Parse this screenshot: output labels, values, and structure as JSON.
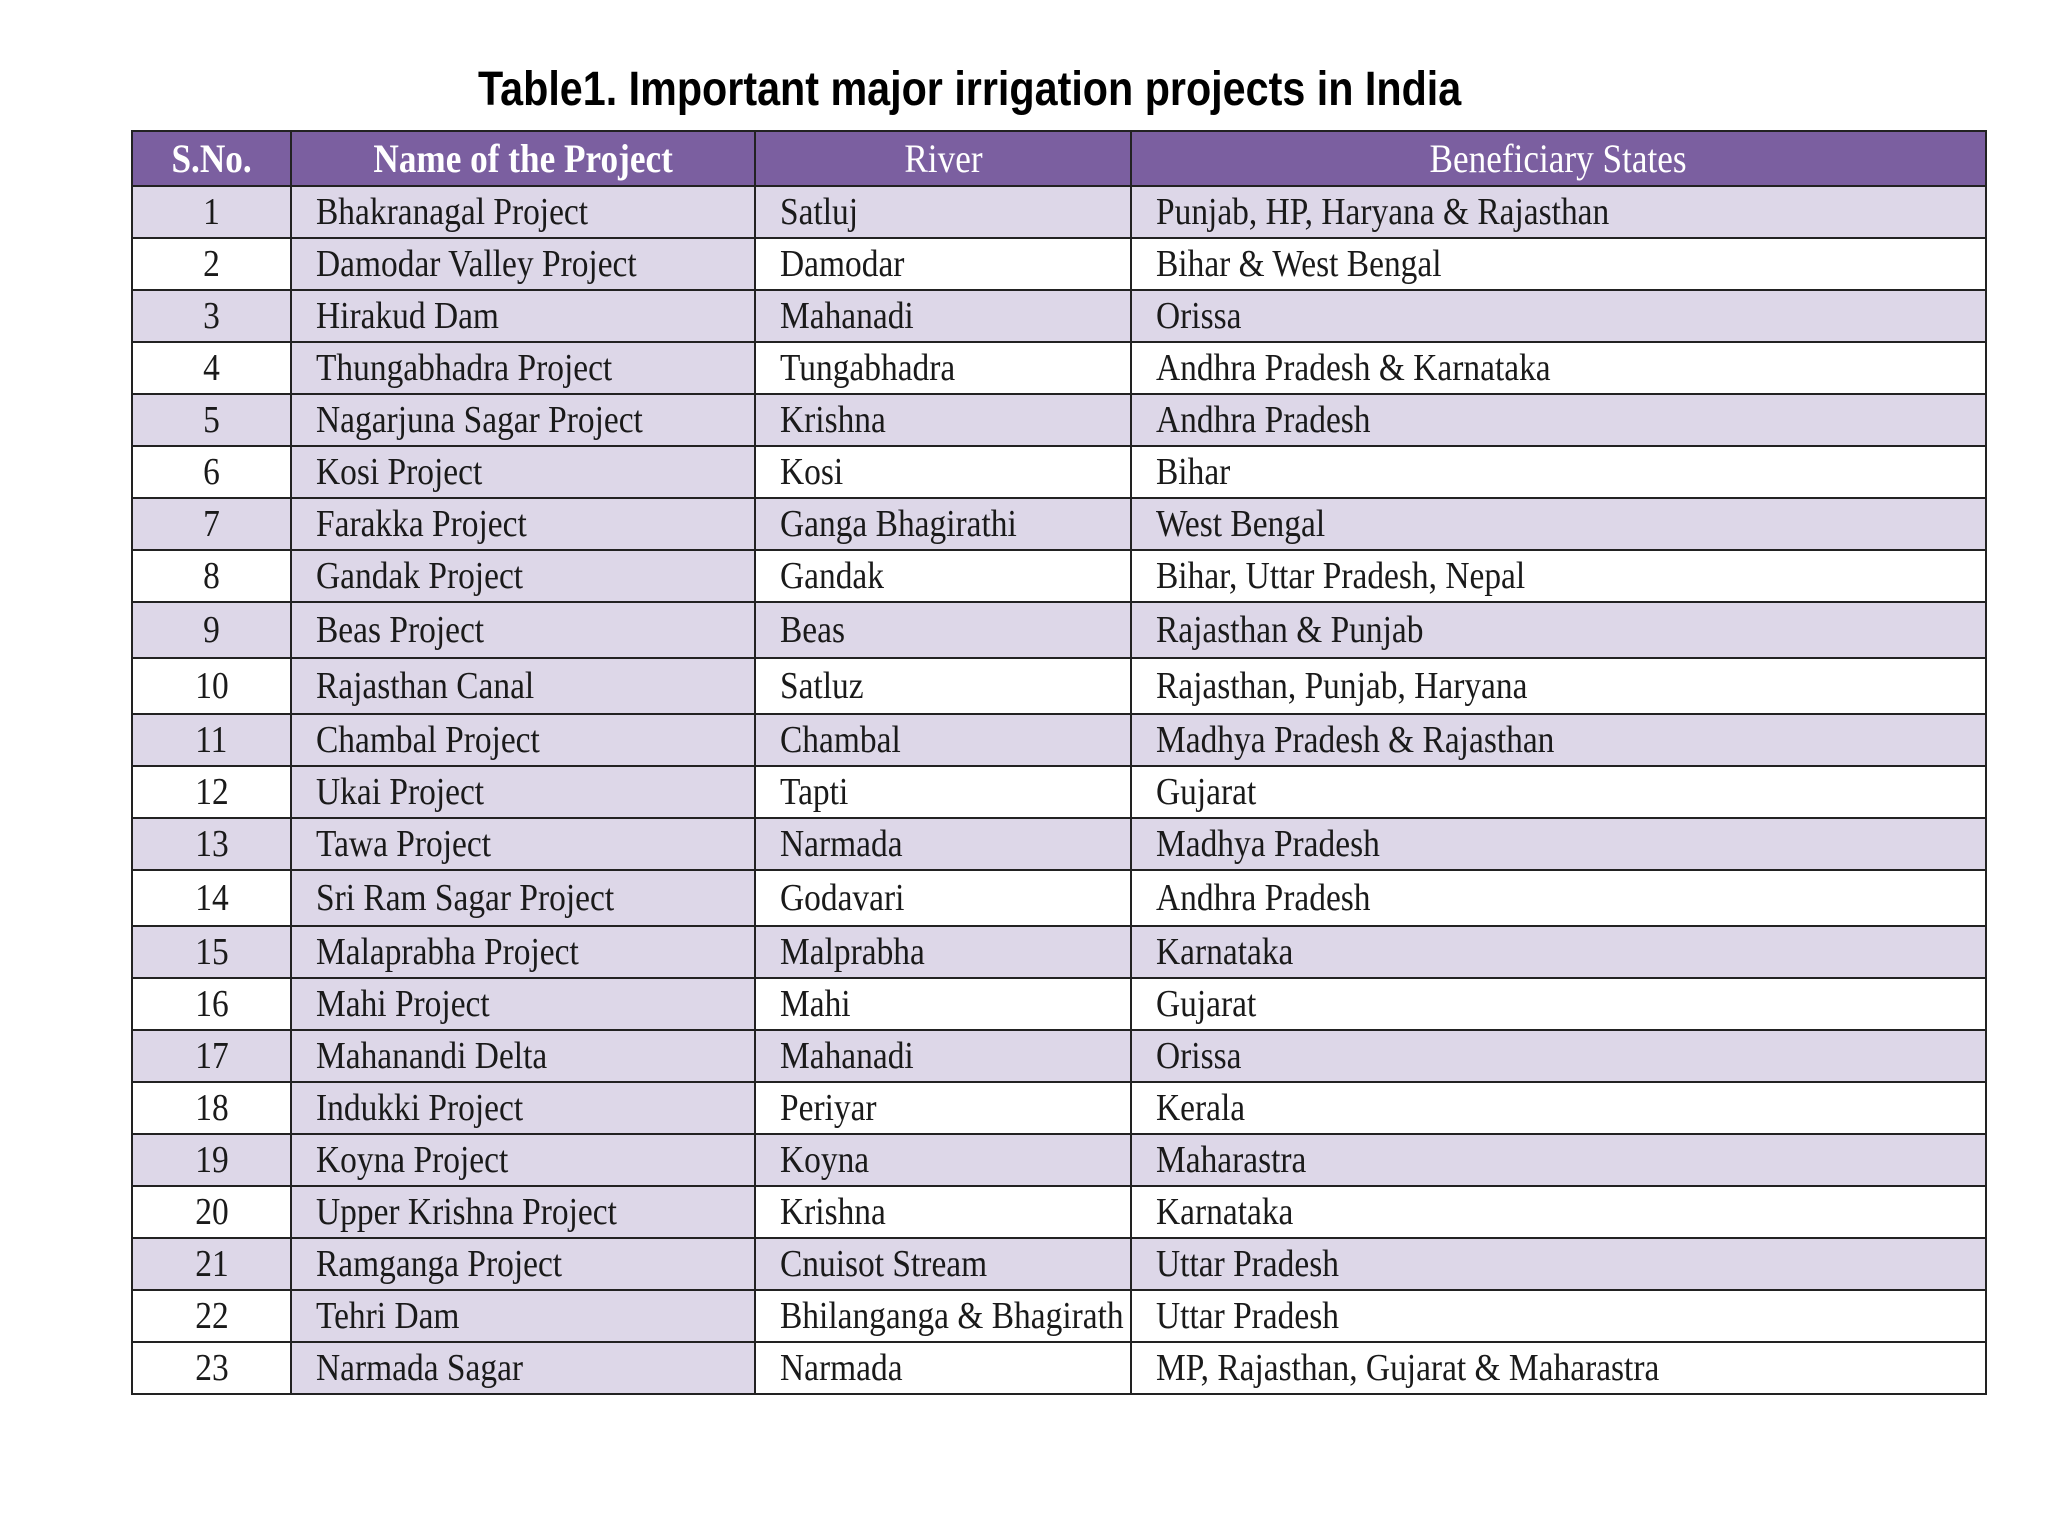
{
  "title": "Table1. Important major irrigation projects in India",
  "colors": {
    "header_bg": "#7b5fa0",
    "header_text": "#ffffff",
    "shaded_row_bg": "#ddd7e8",
    "plain_row_bg": "#ffffff",
    "border": "#222222"
  },
  "table": {
    "headers": {
      "sno": "S.No.",
      "name": "Name of the Project",
      "river": "River",
      "states": "Beneficiary States"
    },
    "rows": [
      {
        "sno": "1",
        "name": "Bhakranagal Project",
        "river": "Satluj",
        "states": "Punjab, HP, Haryana & Rajasthan"
      },
      {
        "sno": "2",
        "name": "Damodar Valley Project",
        "river": "Damodar",
        "states": "Bihar & West Bengal"
      },
      {
        "sno": "3",
        "name": "Hirakud Dam",
        "river": "Mahanadi",
        "states": "Orissa"
      },
      {
        "sno": "4",
        "name": "Thungabhadra Project",
        "river": "Tungabhadra",
        "states": "Andhra Pradesh & Karnataka"
      },
      {
        "sno": "5",
        "name": "Nagarjuna Sagar Project",
        "river": "Krishna",
        "states": "Andhra Pradesh"
      },
      {
        "sno": "6",
        "name": "Kosi  Project",
        "river": "Kosi",
        "states": "Bihar"
      },
      {
        "sno": "7",
        "name": "Farakka Project",
        "river": "Ganga Bhagirathi",
        "states": "West Bengal"
      },
      {
        "sno": "8",
        "name": "Gandak Project",
        "river": "Gandak",
        "states": "Bihar, Uttar Pradesh, Nepal"
      },
      {
        "sno": "9",
        "name": "Beas Project",
        "river": "Beas",
        "states": "Rajasthan & Punjab"
      },
      {
        "sno": "10",
        "name": "Rajasthan Canal",
        "river": "Satluz",
        "states": "Rajasthan, Punjab, Haryana"
      },
      {
        "sno": "11",
        "name": "Chambal Project",
        "river": "Chambal",
        "states": "Madhya Pradesh & Rajasthan"
      },
      {
        "sno": "12",
        "name": "Ukai Project",
        "river": "Tapti",
        "states": "Gujarat"
      },
      {
        "sno": "13",
        "name": "Tawa Project",
        "river": "Narmada",
        "states": "Madhya Pradesh"
      },
      {
        "sno": "14",
        "name": "Sri Ram Sagar Project",
        "river": "Godavari",
        "states": "Andhra Pradesh"
      },
      {
        "sno": "15",
        "name": "Malaprabha Project",
        "river": "Malprabha",
        "states": "Karnataka"
      },
      {
        "sno": "16",
        "name": "Mahi Project",
        "river": "Mahi",
        "states": "Gujarat"
      },
      {
        "sno": "17",
        "name": "Mahanandi Delta",
        "river": "Mahanadi",
        "states": "Orissa"
      },
      {
        "sno": "18",
        "name": "Indukki Project",
        "river": "Periyar",
        "states": "Kerala"
      },
      {
        "sno": "19",
        "name": "Koyna  Project",
        "river": "Koyna",
        "states": "Maharastra"
      },
      {
        "sno": "20",
        "name": "Upper Krishna Project",
        "river": "Krishna",
        "states": "Karnataka"
      },
      {
        "sno": "21",
        "name": "Ramganga  Project",
        "river": "Cnuisot Stream",
        "states": "Uttar Pradesh"
      },
      {
        "sno": "22",
        "name": "Tehri Dam",
        "river": "Bhilanganga & Bhagirath",
        "states": "Uttar Pradesh"
      },
      {
        "sno": "23",
        "name": "Narmada Sagar",
        "river": "Narmada",
        "states": "MP, Rajasthan, Gujarat & Maharastra"
      }
    ]
  }
}
